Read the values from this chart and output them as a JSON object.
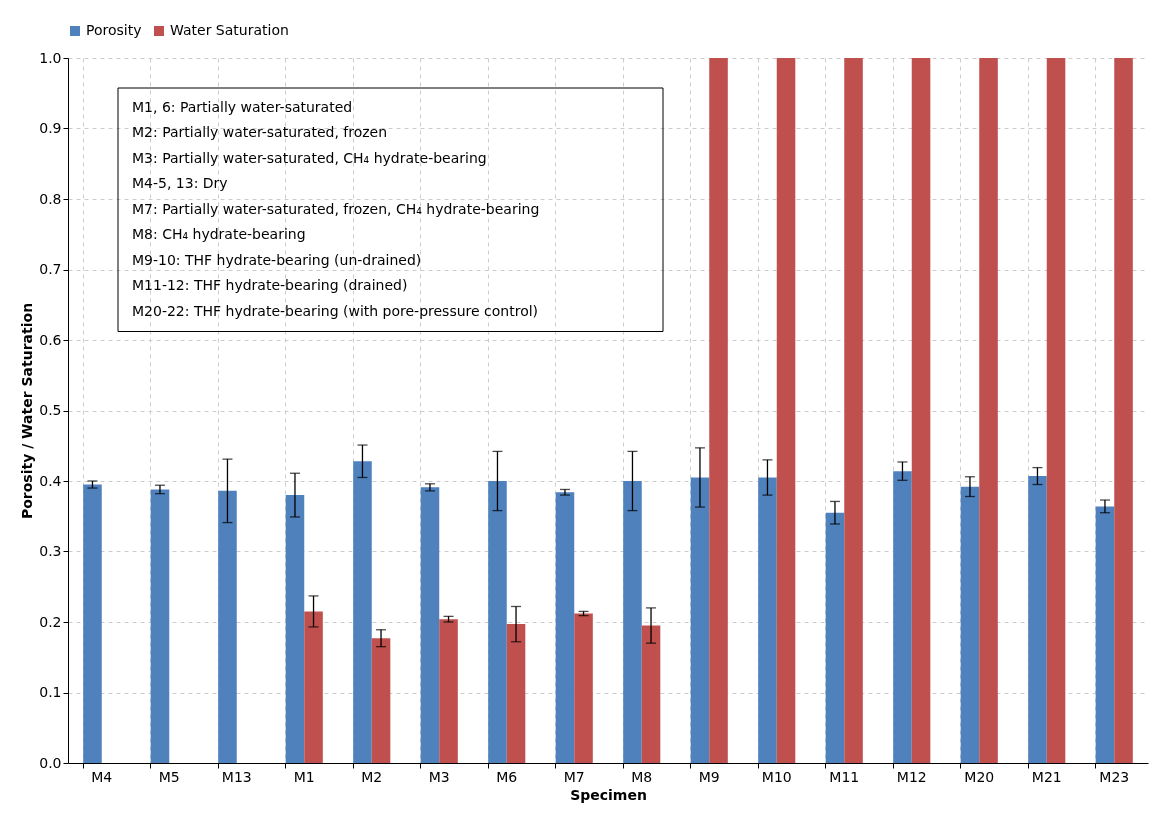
{
  "chart_data": {
    "type": "bar",
    "xlabel": "Specimen",
    "ylabel": "Porosity / Water Saturation",
    "categories": [
      "M4",
      "M5",
      "M13",
      "M1",
      "M2",
      "M3",
      "M6",
      "M7",
      "M8",
      "M9",
      "M10",
      "M11",
      "M12",
      "M20",
      "M21",
      "M23"
    ],
    "series": [
      {
        "name": "Porosity",
        "color": "#4f81bd",
        "values": [
          0.395,
          0.388,
          0.386,
          0.38,
          0.428,
          0.391,
          0.4,
          0.384,
          0.4,
          0.405,
          0.405,
          0.355,
          0.414,
          0.392,
          0.407,
          0.364
        ],
        "errors": [
          0.005,
          0.006,
          0.045,
          0.031,
          0.023,
          0.005,
          0.042,
          0.004,
          0.042,
          0.042,
          0.025,
          0.016,
          0.013,
          0.014,
          0.012,
          0.009
        ]
      },
      {
        "name": "Water Saturation",
        "color": "#c0504d",
        "values": [
          null,
          null,
          null,
          0.215,
          0.177,
          0.204,
          0.197,
          0.212,
          0.195,
          1.0,
          1.0,
          1.0,
          1.0,
          1.0,
          1.0,
          1.0
        ],
        "errors": [
          null,
          null,
          null,
          0.022,
          0.012,
          0.004,
          0.025,
          0.003,
          0.025,
          null,
          null,
          null,
          null,
          null,
          null,
          null
        ]
      }
    ],
    "ylim": [
      0,
      1
    ],
    "yticks": [
      {
        "value": 0,
        "label": "0.0"
      },
      {
        "value": 0.1,
        "label": "0.1"
      },
      {
        "value": 0.2,
        "label": "0.2"
      },
      {
        "value": 0.3,
        "label": "0.3"
      },
      {
        "value": 0.4,
        "label": "0.4"
      },
      {
        "value": 0.5,
        "label": "0.5"
      },
      {
        "value": 0.6,
        "label": "0.6"
      },
      {
        "value": 0.7,
        "label": "0.7"
      },
      {
        "value": 0.8,
        "label": "0.8"
      },
      {
        "value": 0.9,
        "label": "0.9"
      },
      {
        "value": 1,
        "label": "1.0"
      }
    ],
    "grid": true,
    "legend": "top",
    "annotations": [
      "M1, 6: Partially water-saturated",
      "M2: Partially water-saturated, frozen",
      "M3: Partially water-saturated, CH₄ hydrate-bearing",
      "M4-5, 13: Dry",
      "M7: Partially water-saturated, frozen, CH₄ hydrate-bearing",
      "M8: CH₄ hydrate-bearing",
      "M9-10: THF hydrate-bearing (un-drained)",
      "M11-12: THF hydrate-bearing (drained)",
      "M20-22: THF hydrate-bearing (with pore-pressure control)"
    ]
  }
}
